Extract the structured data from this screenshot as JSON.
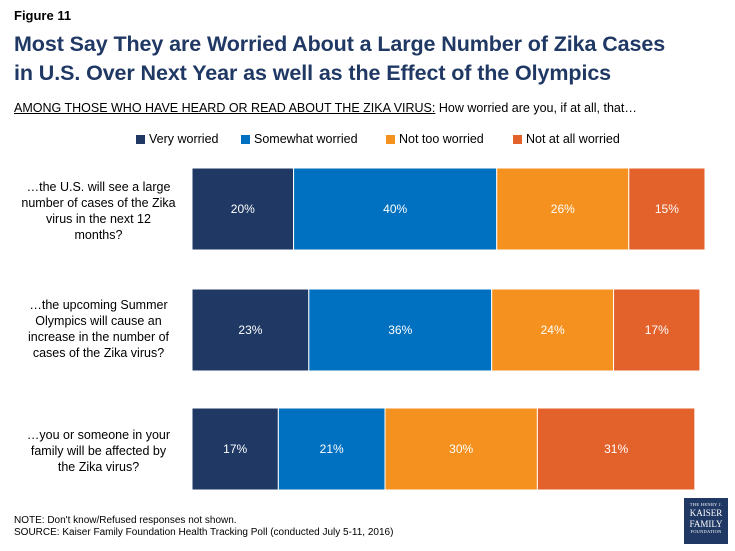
{
  "figure_label": "Figure 11",
  "title_lines": [
    "Most Say They are Worried About a Large Number of Zika Cases",
    "in U.S. Over Next Year as well as the Effect of the Olympics"
  ],
  "subtitle": {
    "lead": "AMONG THOSE WHO HAVE HEARD OR READ ABOUT THE ZIKA VIRUS:",
    "rest": " How worried are you, if at all, that…"
  },
  "row_labels": [
    [
      "…the U.S. will see a large",
      "number of cases of the Zika",
      "virus in the next 12",
      "months?"
    ],
    [
      "…the upcoming Summer",
      "Olympics will cause an",
      "increase in the number of",
      "cases of the Zika virus?"
    ],
    [
      "…you or someone in your",
      "family will be affected by",
      "the Zika virus?"
    ]
  ],
  "footer": {
    "note": "NOTE: Don't know/Refused responses not shown.",
    "source": "SOURCE: Kaiser Family Foundation Health Tracking Poll (conducted July 5-11, 2016)"
  },
  "logo": {
    "line1": "THE HENRY J.",
    "line2": "KAISER",
    "line3": "FAMILY",
    "line4": "FOUNDATION"
  },
  "chart_data": {
    "type": "bar",
    "orientation": "horizontal-stacked",
    "xlim": [
      0,
      101
    ],
    "categories": [
      "…the U.S. will see a large number of cases of the Zika virus in the next 12 months?",
      "…the upcoming Summer Olympics will cause an increase in the number of cases of the Zika virus?",
      "…you or someone in your family will be affected by the Zika virus?"
    ],
    "series": [
      {
        "name": "Very worried",
        "color": "#1f3864",
        "values": [
          20,
          23,
          17
        ],
        "labels": [
          "20%",
          "23%",
          "17%"
        ]
      },
      {
        "name": "Somewhat worried",
        "color": "#0070c0",
        "values": [
          40,
          36,
          21
        ],
        "labels": [
          "40%",
          "36%",
          "21%"
        ]
      },
      {
        "name": "Not too worried",
        "color": "#f5911e",
        "values": [
          26,
          24,
          30
        ],
        "labels": [
          "26%",
          "24%",
          "30%"
        ]
      },
      {
        "name": "Not at all worried",
        "color": "#e3612a",
        "values": [
          15,
          17,
          31
        ],
        "labels": [
          "15%",
          "17%",
          "31%"
        ]
      }
    ],
    "legend_position": "top"
  }
}
